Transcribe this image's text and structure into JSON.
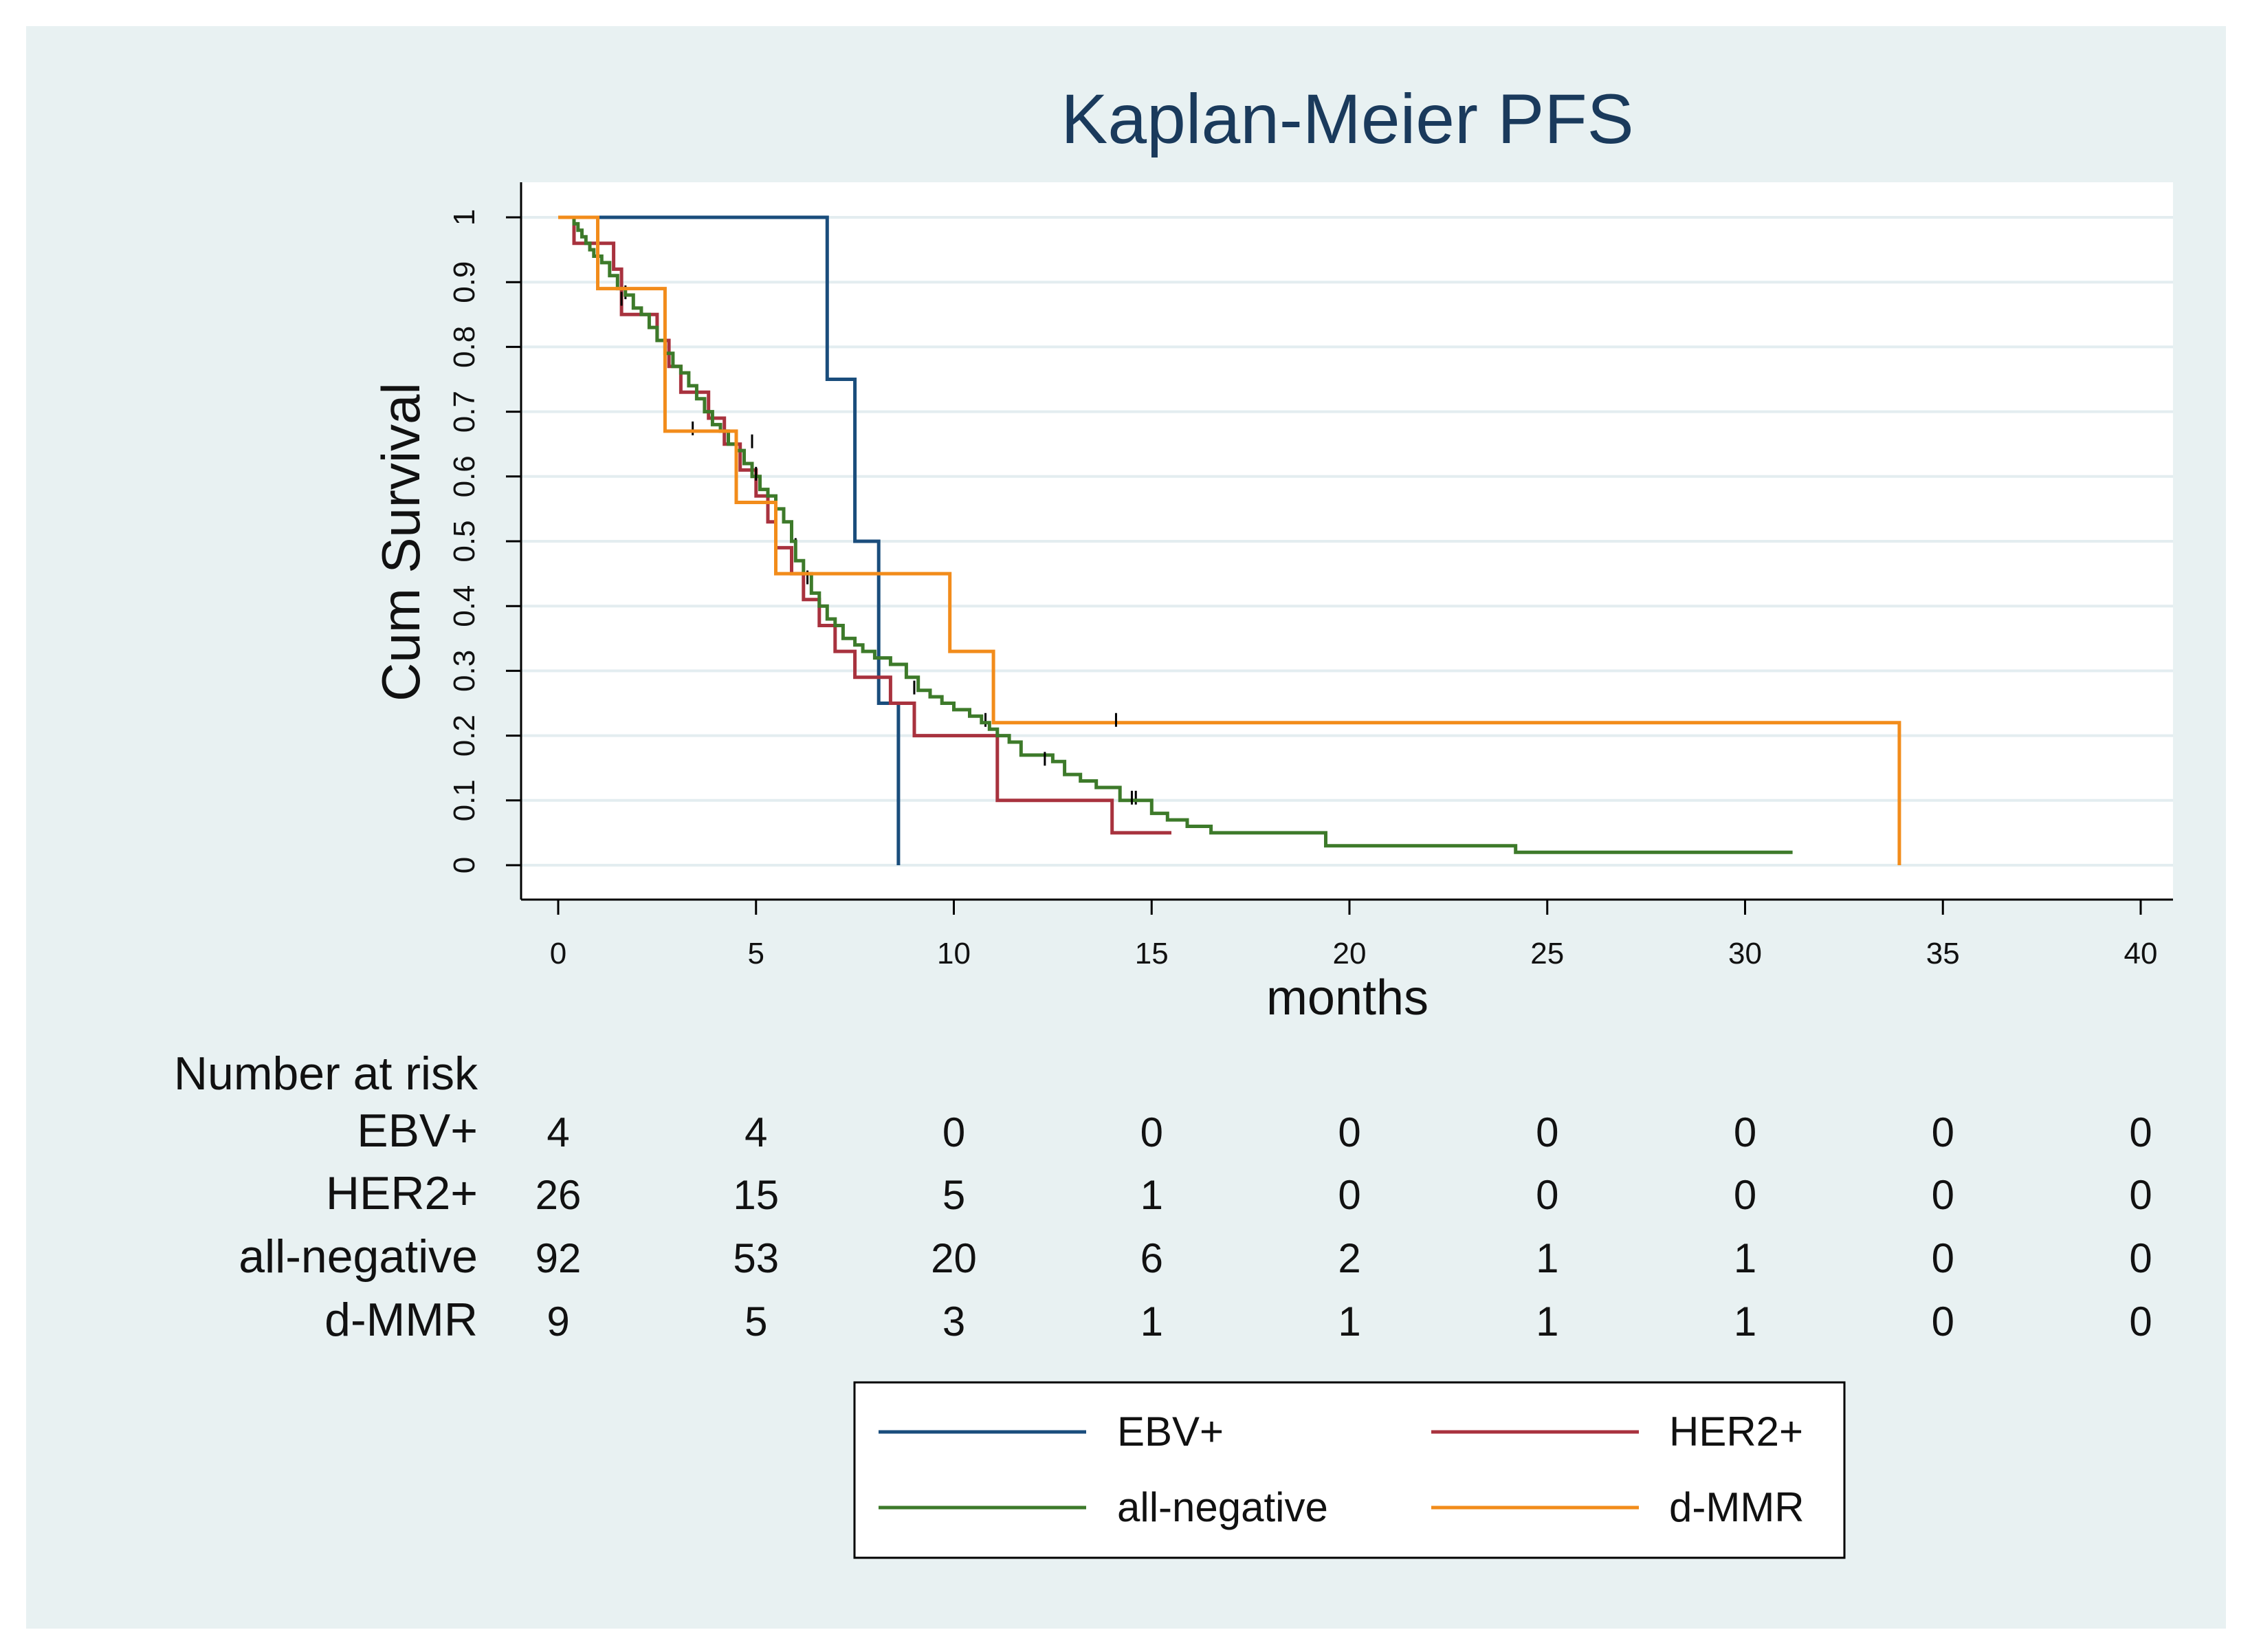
{
  "chart_data": {
    "type": "line",
    "subtype": "kaplan-meier step",
    "title": "Kaplan-Meier PFS",
    "xlabel": "months",
    "ylabel": "Cum Survival",
    "xlim": [
      0,
      40
    ],
    "ylim": [
      0,
      1
    ],
    "xticks": [
      0,
      5,
      10,
      15,
      20,
      25,
      30,
      35,
      40
    ],
    "yticks": [
      "0",
      "0.1",
      "0.2",
      "0.3",
      "0.4",
      "0.5",
      "0.6",
      "0.7",
      "0.8",
      "0.9",
      "1"
    ],
    "grid": true,
    "colors": {
      "outer_background": "#e8f1f2",
      "plot_background": "#ffffff",
      "grid": "#e3edf0",
      "title": "#1a3a5c"
    },
    "series": [
      {
        "name": "EBV+",
        "color": "#1a4d7c",
        "steps": [
          [
            0.1,
            1.0
          ],
          [
            6.8,
            0.75
          ],
          [
            7.5,
            0.5
          ],
          [
            8.1,
            0.25
          ],
          [
            8.6,
            0.0
          ]
        ],
        "end_x": 8.6,
        "censored": []
      },
      {
        "name": "HER2+",
        "color": "#a8323e",
        "steps": [
          [
            0.1,
            1.0
          ],
          [
            0.4,
            0.96
          ],
          [
            1.4,
            0.92
          ],
          [
            1.6,
            0.85
          ],
          [
            2.5,
            0.81
          ],
          [
            2.8,
            0.77
          ],
          [
            3.1,
            0.73
          ],
          [
            3.8,
            0.69
          ],
          [
            4.2,
            0.65
          ],
          [
            4.6,
            0.61
          ],
          [
            5.0,
            0.57
          ],
          [
            5.3,
            0.53
          ],
          [
            5.5,
            0.49
          ],
          [
            5.9,
            0.45
          ],
          [
            6.2,
            0.41
          ],
          [
            6.6,
            0.37
          ],
          [
            7.0,
            0.33
          ],
          [
            7.5,
            0.29
          ],
          [
            8.4,
            0.25
          ],
          [
            9.0,
            0.2
          ],
          [
            10.5,
            0.2
          ],
          [
            11.1,
            0.1
          ],
          [
            14.0,
            0.05
          ]
        ],
        "end_x": 15.5,
        "censored": [
          [
            1.7,
            0.88
          ],
          [
            4.9,
            0.65
          ],
          [
            6.0,
            0.49
          ],
          [
            10.8,
            0.22
          ],
          [
            14.6,
            0.1
          ]
        ]
      },
      {
        "name": "all-negative",
        "color": "#3d7a2a",
        "steps": [
          [
            0.3,
            1.0
          ],
          [
            0.4,
            0.99
          ],
          [
            0.5,
            0.98
          ],
          [
            0.6,
            0.97
          ],
          [
            0.7,
            0.96
          ],
          [
            0.8,
            0.95
          ],
          [
            0.9,
            0.94
          ],
          [
            1.1,
            0.93
          ],
          [
            1.3,
            0.91
          ],
          [
            1.5,
            0.89
          ],
          [
            1.7,
            0.88
          ],
          [
            1.9,
            0.86
          ],
          [
            2.1,
            0.85
          ],
          [
            2.3,
            0.83
          ],
          [
            2.5,
            0.81
          ],
          [
            2.7,
            0.79
          ],
          [
            2.9,
            0.77
          ],
          [
            3.1,
            0.76
          ],
          [
            3.3,
            0.74
          ],
          [
            3.5,
            0.72
          ],
          [
            3.7,
            0.7
          ],
          [
            3.9,
            0.68
          ],
          [
            4.1,
            0.67
          ],
          [
            4.3,
            0.65
          ],
          [
            4.5,
            0.64
          ],
          [
            4.7,
            0.62
          ],
          [
            4.9,
            0.6
          ],
          [
            5.1,
            0.58
          ],
          [
            5.3,
            0.57
          ],
          [
            5.5,
            0.55
          ],
          [
            5.7,
            0.53
          ],
          [
            5.9,
            0.5
          ],
          [
            6.0,
            0.47
          ],
          [
            6.2,
            0.45
          ],
          [
            6.4,
            0.42
          ],
          [
            6.6,
            0.4
          ],
          [
            6.8,
            0.38
          ],
          [
            7.0,
            0.37
          ],
          [
            7.2,
            0.35
          ],
          [
            7.5,
            0.34
          ],
          [
            7.7,
            0.33
          ],
          [
            8.0,
            0.32
          ],
          [
            8.4,
            0.31
          ],
          [
            8.8,
            0.29
          ],
          [
            9.1,
            0.27
          ],
          [
            9.4,
            0.26
          ],
          [
            9.7,
            0.25
          ],
          [
            10.0,
            0.24
          ],
          [
            10.4,
            0.23
          ],
          [
            10.7,
            0.22
          ],
          [
            10.9,
            0.21
          ],
          [
            11.1,
            0.2
          ],
          [
            11.4,
            0.19
          ],
          [
            11.7,
            0.17
          ],
          [
            12.5,
            0.16
          ],
          [
            12.8,
            0.14
          ],
          [
            13.2,
            0.13
          ],
          [
            13.6,
            0.12
          ],
          [
            14.2,
            0.1
          ],
          [
            15.0,
            0.08
          ],
          [
            15.4,
            0.07
          ],
          [
            15.9,
            0.06
          ],
          [
            16.5,
            0.05
          ],
          [
            19.4,
            0.03
          ],
          [
            24.2,
            0.02
          ]
        ],
        "end_x": 31.2,
        "censored": [
          [
            1.6,
            0.87
          ],
          [
            3.4,
            0.67
          ],
          [
            5.0,
            0.6
          ],
          [
            6.3,
            0.44
          ],
          [
            9.0,
            0.27
          ],
          [
            12.3,
            0.16
          ],
          [
            14.5,
            0.1
          ]
        ]
      },
      {
        "name": "d-MMR",
        "color": "#f28c1b",
        "steps": [
          [
            0.0,
            1.0
          ],
          [
            1.0,
            0.89
          ],
          [
            2.7,
            0.67
          ],
          [
            4.5,
            0.56
          ],
          [
            5.5,
            0.45
          ],
          [
            9.9,
            0.33
          ],
          [
            11.0,
            0.22
          ],
          [
            33.9,
            0.0
          ]
        ],
        "end_x": 33.9,
        "censored": [
          [
            14.1,
            0.22
          ]
        ]
      }
    ],
    "risk_table": {
      "header": "Number at risk",
      "times": [
        0,
        5,
        10,
        15,
        20,
        25,
        30,
        35,
        40
      ],
      "rows": [
        {
          "label": "EBV+",
          "values": [
            "4",
            "4",
            "0",
            "0",
            "0",
            "0",
            "0",
            "0",
            "0"
          ]
        },
        {
          "label": "HER2+",
          "values": [
            "26",
            "15",
            "5",
            "1",
            "0",
            "0",
            "0",
            "0",
            "0"
          ]
        },
        {
          "label": "all-negative",
          "values": [
            "92",
            "53",
            "20",
            "6",
            "2",
            "1",
            "1",
            "0",
            "0"
          ]
        },
        {
          "label": "d-MMR",
          "values": [
            "9",
            "5",
            "3",
            "1",
            "1",
            "1",
            "1",
            "0",
            "0"
          ]
        }
      ]
    },
    "legend": {
      "position": "bottom-center",
      "entries": [
        "EBV+",
        "HER2+",
        "all-negative",
        "d-MMR"
      ]
    }
  }
}
